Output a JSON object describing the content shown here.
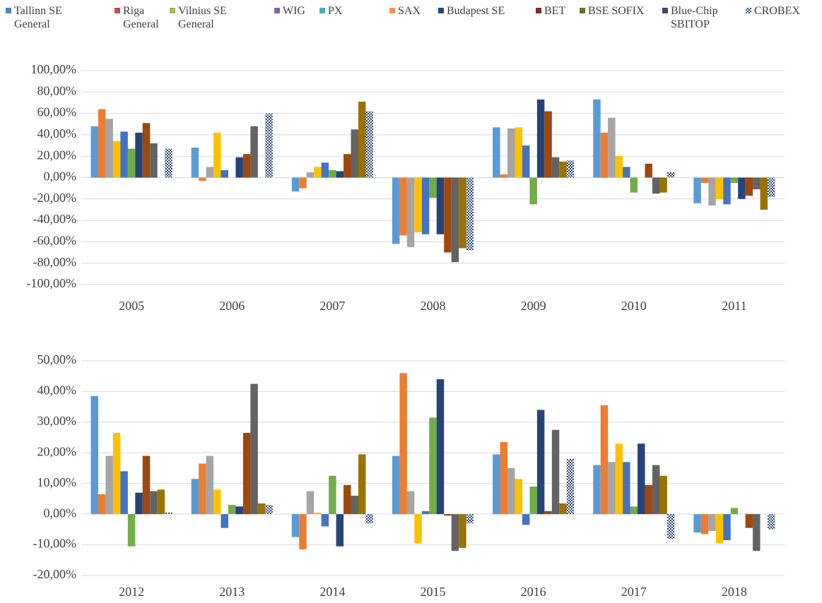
{
  "chart_data": [
    {
      "type": "bar",
      "categories": [
        "2005",
        "2006",
        "2007",
        "2008",
        "2009",
        "2010",
        "2011"
      ],
      "series": [
        {
          "name": "Tallinn SE General",
          "color": "#5b9bd5",
          "legend_color": "#4f81bd",
          "values": [
            48,
            28,
            -13,
            -62,
            47,
            73,
            -24
          ]
        },
        {
          "name": "Riga General",
          "color": "#ed7d31",
          "legend_color": "#c0504d",
          "values": [
            64,
            -3,
            -10,
            -54,
            3,
            42,
            -5
          ]
        },
        {
          "name": "Vilnius SE General",
          "color": "#a5a5a5",
          "legend_color": "#9bbb59",
          "values": [
            55,
            10,
            5,
            -65,
            46,
            56,
            -26
          ]
        },
        {
          "name": "WIG",
          "color": "#ffc000",
          "legend_color": "#8064a2",
          "values": [
            34,
            42,
            10,
            -51,
            47,
            20,
            -20
          ]
        },
        {
          "name": "PX",
          "color": "#4472c4",
          "legend_color": "#4bacc6",
          "values": [
            43,
            7,
            14,
            -53,
            30,
            10,
            -25
          ]
        },
        {
          "name": "SAX",
          "color": "#70ad47",
          "legend_color": "#f79646",
          "values": [
            27,
            0,
            7,
            -19,
            -25,
            -14,
            -5
          ]
        },
        {
          "name": "Budapest SE",
          "color": "#264478",
          "legend_color": "#1f497d",
          "values": [
            42,
            19,
            6,
            -53,
            73,
            0,
            -20
          ]
        },
        {
          "name": "BET",
          "color": "#9e480e",
          "legend_color": "#772c2a",
          "values": [
            51,
            22,
            22,
            -70,
            62,
            13,
            -17
          ]
        },
        {
          "name": "BSE SOFIX",
          "color": "#636363",
          "legend_color": "#5f7530",
          "values": [
            32,
            48,
            45,
            -79,
            19,
            -15,
            -11
          ]
        },
        {
          "name": "Blue-Chip SBITOP",
          "color": "#997300",
          "legend_color": "#4d3b62",
          "values": [
            0,
            0,
            71,
            -66,
            15,
            -14,
            -30
          ]
        },
        {
          "name": "CROBEX",
          "color": "#2e4a7a",
          "legend_color": "#2e4a7a",
          "pattern": "checker",
          "values": [
            27,
            60,
            62,
            -68,
            16,
            5,
            -18
          ]
        }
      ],
      "ylim": [
        -100,
        100
      ],
      "yticks": [
        {
          "value": -100,
          "label": "-100,00%"
        },
        {
          "value": -80,
          "label": "-80,00%"
        },
        {
          "value": -60,
          "label": "-60,00%"
        },
        {
          "value": -40,
          "label": "-40,00%"
        },
        {
          "value": -20,
          "label": "-20,00%"
        },
        {
          "value": 0,
          "label": "0,00%"
        },
        {
          "value": 20,
          "label": "20,00%"
        },
        {
          "value": 40,
          "label": "40,00%"
        },
        {
          "value": 60,
          "label": "60,00%"
        },
        {
          "value": 80,
          "label": "80,00%"
        },
        {
          "value": 100,
          "label": "100,00%"
        }
      ],
      "grid": true
    },
    {
      "type": "bar",
      "categories": [
        "2012",
        "2013",
        "2014",
        "2015",
        "2016",
        "2017",
        "2018"
      ],
      "series": [
        {
          "values": [
            38.5,
            11.5,
            -7.5,
            19,
            19.5,
            16,
            -6
          ]
        },
        {
          "values": [
            6.5,
            16.5,
            -11.5,
            46,
            23.5,
            35.5,
            -6.5
          ]
        },
        {
          "values": [
            19,
            19,
            7.5,
            7.5,
            15,
            17,
            -5.5
          ]
        },
        {
          "values": [
            26.5,
            8,
            0.5,
            -9.5,
            11.5,
            23,
            -9.5
          ]
        },
        {
          "values": [
            14,
            -4.5,
            -4,
            1,
            -3.5,
            17,
            -8.5
          ]
        },
        {
          "values": [
            -10.5,
            3,
            12.5,
            31.5,
            9,
            2.5,
            2
          ]
        },
        {
          "values": [
            7,
            2.5,
            -10.5,
            44,
            34,
            23,
            0
          ]
        },
        {
          "values": [
            19,
            26.5,
            9.5,
            -0.5,
            1,
            9.5,
            -4.5
          ]
        },
        {
          "values": [
            7.5,
            42.5,
            6,
            -12,
            27.5,
            16,
            -12
          ]
        },
        {
          "values": [
            8,
            3.5,
            19.5,
            -11,
            3.5,
            12.5,
            0
          ]
        },
        {
          "values": [
            0.5,
            3,
            -3,
            -3,
            18,
            -8,
            -5
          ]
        }
      ],
      "ylim": [
        -20,
        50
      ],
      "yticks": [
        {
          "value": -20,
          "label": "-20,00%"
        },
        {
          "value": -10,
          "label": "-10,00%"
        },
        {
          "value": 0,
          "label": "0,00%"
        },
        {
          "value": 10,
          "label": "10,00%"
        },
        {
          "value": 20,
          "label": "20,00%"
        },
        {
          "value": 30,
          "label": "30,00%"
        },
        {
          "value": 40,
          "label": "40,00%"
        },
        {
          "value": 50,
          "label": "50,00%"
        }
      ],
      "grid": true
    }
  ]
}
